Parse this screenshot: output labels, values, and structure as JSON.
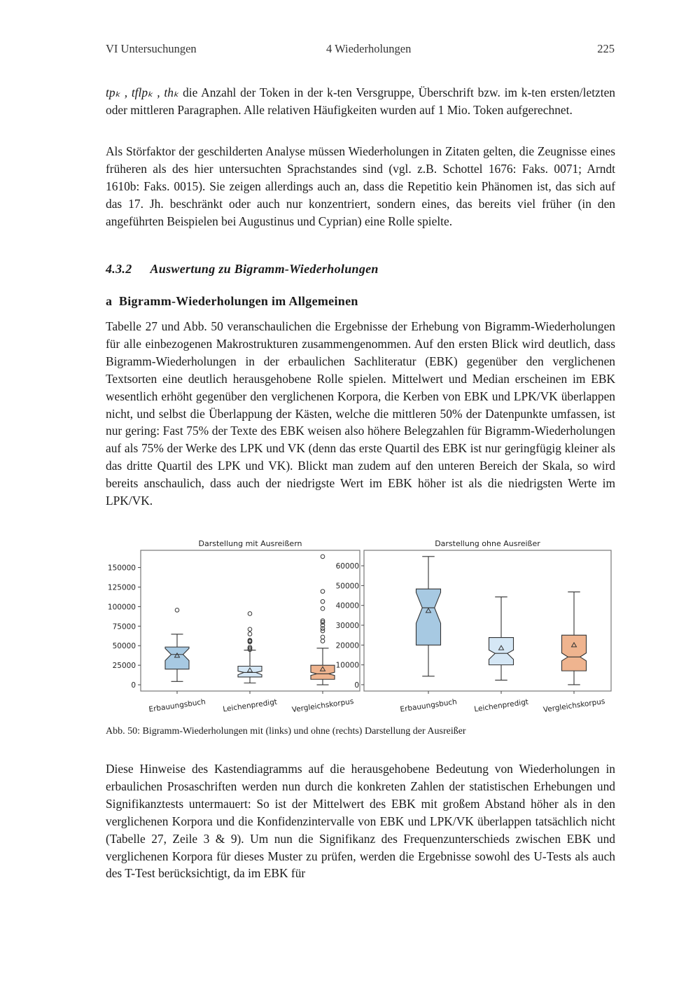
{
  "header": {
    "left": "VI Untersuchungen",
    "center": "4 Wiederholungen",
    "page_number": "225"
  },
  "para1": {
    "math": "tpₖ ,  tflpₖ ,  thₖ",
    "text": " die Anzahl der Token in der k-ten Versgruppe, Überschrift bzw. im k-ten ersten/letzten oder mittleren Paragraphen. Alle relativen Häufigkeiten wurden auf 1 Mio. Token aufgerechnet."
  },
  "para2": "Als Störfaktor der geschilderten Analyse müssen Wiederholungen in Zitaten gelten, die Zeugnisse eines früheren als des hier untersuchten Sprachstandes sind (vgl. z.B. Schottel 1676: Faks. 0071; Arndt 1610b: Faks. 0015). Sie zeigen allerdings auch an, dass die Repetitio kein Phänomen ist, das sich auf das 17. Jh. beschränkt oder auch nur konzentriert, sondern eines, das bereits viel früher (in den angeführten Beispielen bei Augustinus und Cyprian) eine Rolle spielte.",
  "section": {
    "number": "4.3.2",
    "title": "Auswertung zu Bigramm-Wiederholungen"
  },
  "subsection": {
    "letter": "a",
    "title": "Bigramm-Wiederholungen im Allgemeinen"
  },
  "para3": "Tabelle 27 und Abb. 50 veranschaulichen die Ergebnisse der Erhebung von Bigramm-Wiederholungen für alle einbezogenen Makrostrukturen zusammengenommen. Auf den ersten Blick wird deutlich, dass Bigramm-Wiederholungen in der erbaulichen Sachliteratur (EBK) gegenüber den verglichenen Textsorten eine deutlich herausgehobene Rolle spielen. Mittelwert und Median erscheinen im EBK wesentlich erhöht gegenüber den verglichenen Korpora, die Kerben von EBK und LPK/VK überlappen nicht, und selbst die Überlappung der Kästen, welche die mittleren 50% der Datenpunkte umfassen, ist nur gering: Fast 75% der Texte des EBK weisen also höhere Belegzahlen für Bigramm-Wiederholungen auf als 75% der Werke des LPK und VK (denn das erste Quartil des EBK ist nur geringfügig kleiner als das dritte Quartil des LPK und VK). Blickt man zudem auf den unteren Bereich der Skala, so wird bereits anschaulich, dass auch der niedrigste Wert im EBK höher ist als die niedrigsten Werte im LPK/VK.",
  "caption": "Abb. 50: Bigramm-Wiederholungen mit (links) und ohne (rechts) Darstellung der Ausreißer",
  "para4": "Diese Hinweise des Kastendiagramms auf die herausgehobene Bedeutung von Wiederholungen in erbaulichen Prosaschriften werden nun durch die konkreten Zahlen der statistischen Erhebungen und Signifikanztests untermauert: So ist der Mittelwert des EBK mit großem Abstand höher als in den verglichenen Korpora und die Konfidenzintervalle von EBK und LPK/VK überlappen tatsächlich nicht (Tabelle 27, Zeile 3 & 9). Um nun die Signifikanz des Frequenzunterschieds zwischen EBK und verglichenen Korpora für dieses Muster zu prüfen, werden die Ergebnisse sowohl des U-Tests als auch des T-Test berücksichtigt, da im EBK für",
  "chart_data": [
    {
      "type": "boxplot",
      "title": "Darstellung mit Ausreißern",
      "categories": [
        "Erbauungsbuch",
        "Leichenpredigt",
        "Vergleichskorpus"
      ],
      "colors": [
        "#a7c9e2",
        "#d5e7f5",
        "#efb48f"
      ],
      "yticks": [
        0,
        25000,
        50000,
        75000,
        100000,
        125000,
        150000
      ],
      "ytick_labels": [
        "0",
        "25000",
        "50000",
        "75000",
        "100000",
        "125000",
        "150000"
      ],
      "ylim": [
        -8000,
        172000
      ],
      "notched": true,
      "grid": false,
      "boxes": [
        {
          "whisker_low": 4300,
          "q1": 20000,
          "notch_low": 31000,
          "median": 38800,
          "notch_high": 46500,
          "q3": 48300,
          "whisker_high": 64700,
          "mean": 37300,
          "outliers": [
            95500
          ]
        },
        {
          "whisker_low": 2300,
          "q1": 10000,
          "notch_low": 12800,
          "median": 15800,
          "notch_high": 17500,
          "q3": 23800,
          "whisker_high": 44300,
          "mean": 18500,
          "outliers": [
            45000,
            46500,
            48000,
            55000,
            56000,
            57000,
            65000,
            71000,
            91000
          ]
        },
        {
          "whisker_low": 0,
          "q1": 7000,
          "notch_low": 12000,
          "median": 14000,
          "notch_high": 16000,
          "q3": 25000,
          "whisker_high": 46800,
          "mean": 20000,
          "outliers": [
            56000,
            61000,
            69000,
            72000,
            76000,
            80000,
            82000,
            97500,
            106500,
            119500,
            164000
          ]
        }
      ]
    },
    {
      "type": "boxplot",
      "title": "Darstellung ohne Ausreißer",
      "categories": [
        "Erbauungsbuch",
        "Leichenpredigt",
        "Vergleichskorpus"
      ],
      "colors": [
        "#a7c9e2",
        "#d5e7f5",
        "#efb48f"
      ],
      "yticks": [
        0,
        10000,
        20000,
        30000,
        40000,
        50000,
        60000
      ],
      "ytick_labels": [
        "0",
        "10000",
        "20000",
        "30000",
        "40000",
        "50000",
        "60000"
      ],
      "ylim": [
        -3200,
        67800
      ],
      "notched": true,
      "grid": false,
      "boxes": [
        {
          "whisker_low": 4300,
          "q1": 20000,
          "notch_low": 31000,
          "median": 38800,
          "notch_high": 46500,
          "q3": 48300,
          "whisker_high": 64700,
          "mean": 37300,
          "outliers": []
        },
        {
          "whisker_low": 2300,
          "q1": 10000,
          "notch_low": 12800,
          "median": 15800,
          "notch_high": 17500,
          "q3": 23800,
          "whisker_high": 44300,
          "mean": 18500,
          "outliers": []
        },
        {
          "whisker_low": 0,
          "q1": 7000,
          "notch_low": 12000,
          "median": 14000,
          "notch_high": 16000,
          "q3": 25000,
          "whisker_high": 46800,
          "mean": 20000,
          "outliers": []
        }
      ]
    }
  ]
}
